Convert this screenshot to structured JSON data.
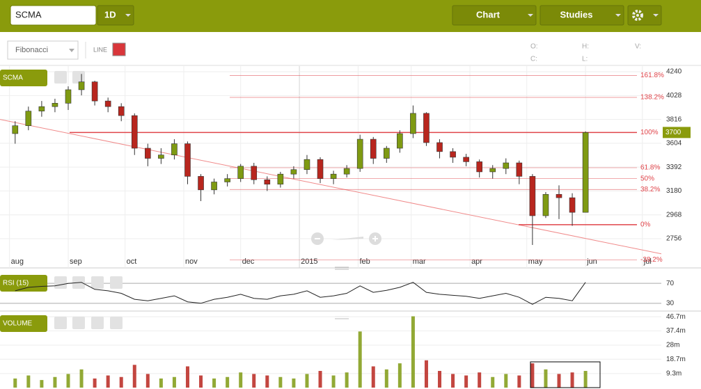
{
  "toolbar": {
    "symbol": "SCMA",
    "interval": "1D",
    "chart_button": "Chart",
    "studies_button": "Studies"
  },
  "drawing_bar": {
    "tool": "Fibonacci",
    "line_label": "LINE",
    "line_color": "#d9363a",
    "ohlc_labels": [
      "O:",
      "C:",
      "H:",
      "L:",
      "V:"
    ]
  },
  "chart_data": [
    {
      "type": "candlestick",
      "panel_label": "SCMA",
      "x": [
        3,
        10,
        17,
        24,
        31,
        38,
        45,
        52,
        59,
        66,
        73,
        80,
        87,
        94,
        101,
        108,
        115,
        122,
        129,
        136,
        143,
        150,
        157,
        164,
        171,
        178,
        185,
        192,
        199,
        206,
        213,
        220,
        227,
        234,
        241,
        248,
        255,
        262,
        269,
        276,
        283,
        290,
        297,
        304
      ],
      "open": [
        3690,
        3760,
        3890,
        3930,
        3960,
        4080,
        4150,
        3980,
        3930,
        3850,
        3560,
        3470,
        3500,
        3600,
        3310,
        3190,
        3260,
        3290,
        3400,
        3280,
        3240,
        3330,
        3370,
        3460,
        3290,
        3330,
        3380,
        3640,
        3470,
        3560,
        3690,
        3870,
        3610,
        3530,
        3480,
        3440,
        3350,
        3380,
        3430,
        3310,
        2960,
        3150,
        3120,
        2990
      ],
      "high": [
        3800,
        3930,
        3980,
        4000,
        4110,
        4220,
        4160,
        4010,
        3960,
        3870,
        3600,
        3560,
        3640,
        3620,
        3330,
        3290,
        3330,
        3420,
        3430,
        3310,
        3350,
        3400,
        3500,
        3480,
        3360,
        3410,
        3680,
        3660,
        3580,
        3720,
        3940,
        3880,
        3640,
        3560,
        3510,
        3460,
        3410,
        3470,
        3450,
        3330,
        3170,
        3230,
        3160,
        3710
      ],
      "low": [
        3600,
        3720,
        3840,
        3880,
        3900,
        4030,
        3940,
        3880,
        3800,
        3500,
        3400,
        3420,
        3460,
        3240,
        3090,
        3150,
        3220,
        3260,
        3240,
        3180,
        3210,
        3290,
        3330,
        3250,
        3240,
        3300,
        3350,
        3420,
        3430,
        3520,
        3650,
        3580,
        3470,
        3430,
        3400,
        3300,
        3290,
        3330,
        3240,
        2700,
        2940,
        2930,
        2870,
        2990
      ],
      "close": [
        3760,
        3890,
        3930,
        3960,
        4080,
        4150,
        3980,
        3930,
        3850,
        3560,
        3470,
        3500,
        3600,
        3310,
        3190,
        3260,
        3290,
        3400,
        3280,
        3240,
        3330,
        3370,
        3460,
        3290,
        3330,
        3380,
        3640,
        3470,
        3560,
        3690,
        3870,
        3610,
        3530,
        3480,
        3440,
        3350,
        3380,
        3430,
        3310,
        2960,
        3150,
        3120,
        2990,
        3700
      ],
      "up_color": "#7f9a12",
      "down_color": "#b8261e",
      "xlim": [
        -5,
        344
      ],
      "ylim": [
        2496,
        4290
      ],
      "xticks": [
        {
          "value": 0,
          "label": "aug"
        },
        {
          "value": 31,
          "label": "sep"
        },
        {
          "value": 61,
          "label": "oct"
        },
        {
          "value": 92,
          "label": "nov"
        },
        {
          "value": 122,
          "label": "dec"
        },
        {
          "value": 153,
          "label": "2015"
        },
        {
          "value": 184,
          "label": "feb"
        },
        {
          "value": 212,
          "label": "mar"
        },
        {
          "value": 243,
          "label": "apr"
        },
        {
          "value": 273,
          "label": "may"
        },
        {
          "value": 304,
          "label": "jun"
        },
        {
          "value": 334,
          "label": "jul"
        }
      ],
      "yticks": [
        2756,
        2968,
        3180,
        3392,
        3604,
        3816,
        4028,
        4240
      ],
      "last_price": 3700,
      "fibonacci": {
        "color": "#e0444a",
        "levels": [
          {
            "label": "161.8%",
            "price": 4207
          },
          {
            "label": "138.2%",
            "price": 4012
          },
          {
            "label": "100%",
            "price": 3700
          },
          {
            "label": "61.8%",
            "price": 3387
          },
          {
            "label": "50%",
            "price": 3290
          },
          {
            "label": "38.2%",
            "price": 3193
          },
          {
            "label": "0%",
            "price": 2880
          },
          {
            "label": "-38.2%",
            "price": 2567
          }
        ]
      },
      "trendline": {
        "x": [
          -5,
          344
        ],
        "y": [
          3816,
          2621
        ],
        "color": "#f08a8a"
      }
    },
    {
      "type": "line",
      "panel_label": "RSI (15)",
      "color": "#222222",
      "values": [
        55,
        62,
        64,
        65,
        70,
        72,
        58,
        55,
        50,
        38,
        35,
        40,
        45,
        33,
        30,
        38,
        42,
        48,
        40,
        38,
        45,
        48,
        55,
        42,
        45,
        50,
        65,
        52,
        56,
        62,
        72,
        52,
        48,
        46,
        44,
        40,
        45,
        50,
        42,
        28,
        42,
        40,
        35,
        72
      ],
      "ylim": [
        13,
        87
      ],
      "yticks": [
        30,
        70
      ]
    },
    {
      "type": "bar",
      "panel_label": "VOLUME",
      "values": [
        6,
        8,
        5,
        7,
        9,
        12,
        6,
        8,
        7,
        15,
        9,
        6,
        7,
        14,
        8,
        6,
        7,
        10,
        9,
        8,
        7,
        6,
        9,
        11,
        8,
        10,
        37,
        14,
        12,
        16,
        47,
        18,
        11,
        9,
        8,
        10,
        7,
        9,
        8,
        16,
        12,
        9,
        10,
        11
      ],
      "ylim": [
        0,
        47.7
      ],
      "yticks": [
        {
          "value": 9.3,
          "label": "9.3m"
        },
        {
          "value": 18.7,
          "label": "18.7m"
        },
        {
          "value": 28,
          "label": "28m"
        },
        {
          "value": 37.4,
          "label": "37.4m"
        },
        {
          "value": 46.7,
          "label": "46.7m"
        }
      ]
    }
  ]
}
